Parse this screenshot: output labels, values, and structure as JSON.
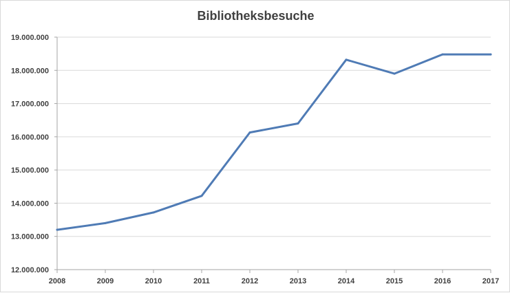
{
  "chart_data": {
    "type": "line",
    "title": "Bibliotheksbesuche",
    "xlabel": "",
    "ylabel": "",
    "categories": [
      "2008",
      "2009",
      "2010",
      "2011",
      "2012",
      "2013",
      "2014",
      "2015",
      "2016",
      "2017"
    ],
    "series": [
      {
        "values": [
          13200000,
          13400000,
          13720000,
          14220000,
          16130000,
          16400000,
          18320000,
          17900000,
          18480000,
          18480000
        ],
        "color": "#4f7bb5"
      }
    ],
    "ylim": [
      12000000,
      19000000
    ],
    "yticks": [
      12000000,
      13000000,
      14000000,
      15000000,
      16000000,
      17000000,
      18000000,
      19000000
    ],
    "ytick_labels": [
      "12.000.000",
      "13.000.000",
      "14.000.000",
      "15.000.000",
      "16.000.000",
      "17.000.000",
      "18.000.000",
      "19.000.000"
    ],
    "grid": true,
    "legend": "none"
  }
}
